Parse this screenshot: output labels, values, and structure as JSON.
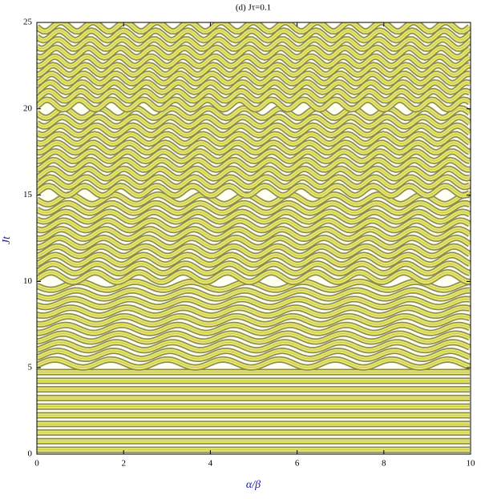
{
  "chart_data": {
    "type": "contour",
    "title": "(d) Jτ=0.1",
    "xlabel": "α/β",
    "ylabel": "Jt",
    "xlim": [
      0,
      10
    ],
    "ylim": [
      0,
      25
    ],
    "xticks": [
      0,
      2,
      4,
      6,
      8,
      10
    ],
    "yticks": [
      0,
      5,
      10,
      15,
      20,
      25
    ]
  }
}
